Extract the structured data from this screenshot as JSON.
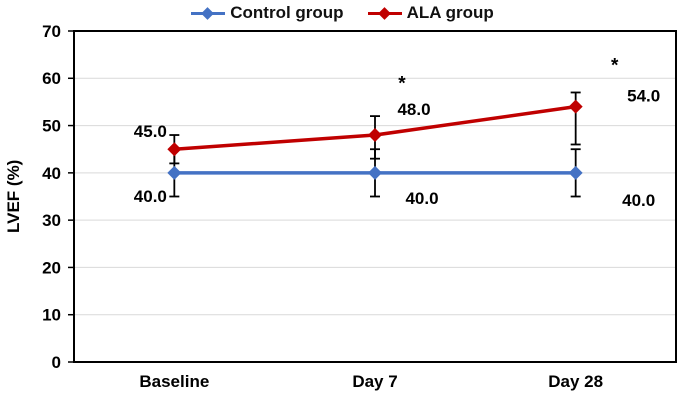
{
  "figure": {
    "ylabel": "LVEF (%)"
  },
  "chart_data": {
    "type": "line",
    "title": "",
    "xlabel": "",
    "ylabel": "LVEF (%)",
    "categories": [
      "Baseline",
      "Day 7",
      "Day 28"
    ],
    "ylim": [
      0,
      70
    ],
    "ytick_step": 10,
    "grid": true,
    "grid_color": "#D9D9D9",
    "axis_color": "#000000",
    "legend_position": "top",
    "series": [
      {
        "name": "Control group",
        "color": "#4472C4",
        "values": [
          40.0,
          40.0,
          40.0
        ],
        "error_up": [
          5,
          5,
          5
        ],
        "error_down": [
          5,
          5,
          5
        ],
        "point_labels": [
          "40.0",
          "40.0",
          "40.0"
        ]
      },
      {
        "name": "ALA group",
        "color": "#C00000",
        "values": [
          45.0,
          48.0,
          54.0
        ],
        "error_up": [
          3,
          4,
          3
        ],
        "error_down": [
          3,
          5,
          8
        ],
        "point_labels": [
          "45.0",
          "48.0",
          "54.0"
        ]
      }
    ],
    "annotations": [
      {
        "text": "*",
        "series": "ALA group",
        "category_index": 1
      },
      {
        "text": "*",
        "series": "ALA group",
        "category_index": 2
      }
    ]
  }
}
